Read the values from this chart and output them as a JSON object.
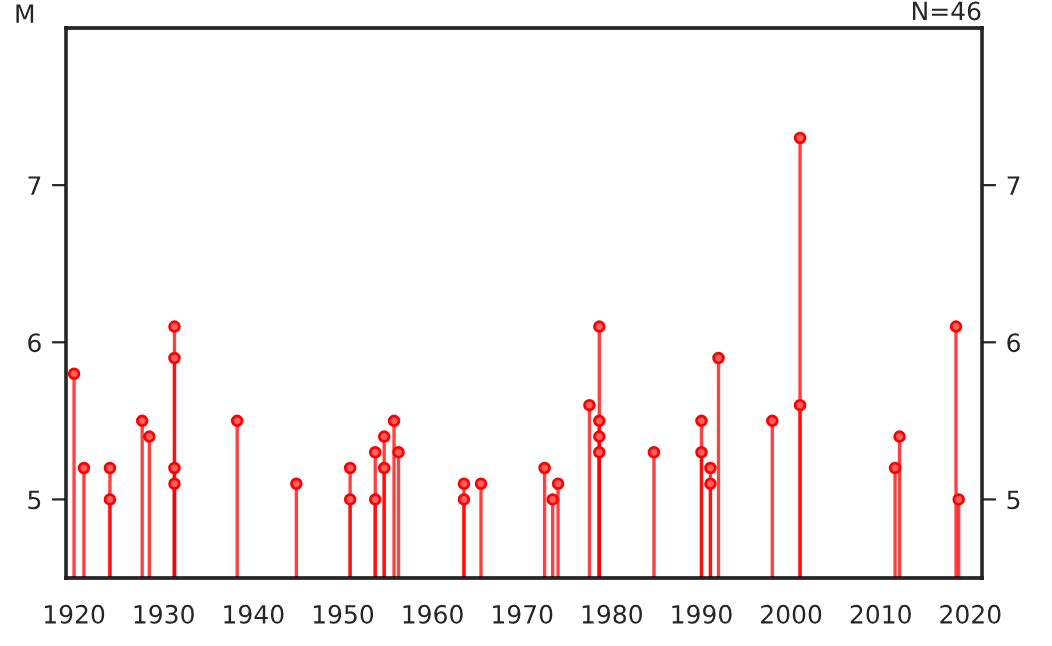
{
  "chart_data": {
    "type": "lollipop",
    "ylabel": "M",
    "annotations": [
      "N=46"
    ],
    "x": [
      1920,
      1921.1,
      1924,
      1924,
      1927.6,
      1928.4,
      1931.2,
      1931.2,
      1931.2,
      1931.2,
      1938.2,
      1944.8,
      1950.8,
      1950.8,
      1953.6,
      1953.6,
      1954.6,
      1954.6,
      1955.7,
      1956.2,
      1963.5,
      1963.5,
      1965.4,
      1972.5,
      1973.4,
      1974,
      1977.5,
      1978.6,
      1978.6,
      1978.6,
      1978.6,
      1984.7,
      1990,
      1990,
      1991,
      1991,
      1991.9,
      1997.9,
      2001,
      2001,
      2011.6,
      2012.1,
      2018.4,
      2018.7
    ],
    "series": [
      {
        "color": "#ff0000",
        "values": [
          5.8,
          5.2,
          5.0,
          5.2,
          5.5,
          5.4,
          6.1,
          5.9,
          5.2,
          5.1,
          5.5,
          5.1,
          5.2,
          5.0,
          5.3,
          5.0,
          5.4,
          5.2,
          5.5,
          5.3,
          5.1,
          5.0,
          5.1,
          5.2,
          5.0,
          5.1,
          5.6,
          6.1,
          5.5,
          5.4,
          5.3,
          5.3,
          5.5,
          5.3,
          5.2,
          5.1,
          5.9,
          5.5,
          7.3,
          5.6,
          5.2,
          5.4,
          6.1,
          5.0
        ]
      }
    ],
    "marker": "circle",
    "grid": false,
    "legend": false,
    "xlim": [
      1919.1,
      2021.3
    ],
    "xticks": [
      1920,
      1930,
      1940,
      1950,
      1960,
      1970,
      1980,
      1990,
      2000,
      2010,
      2020
    ],
    "ylim": [
      4.5,
      8
    ],
    "yticks": [
      5,
      6,
      7
    ],
    "y2lim": [
      4.5,
      8
    ],
    "y2ticks": [
      5,
      6,
      7
    ]
  }
}
